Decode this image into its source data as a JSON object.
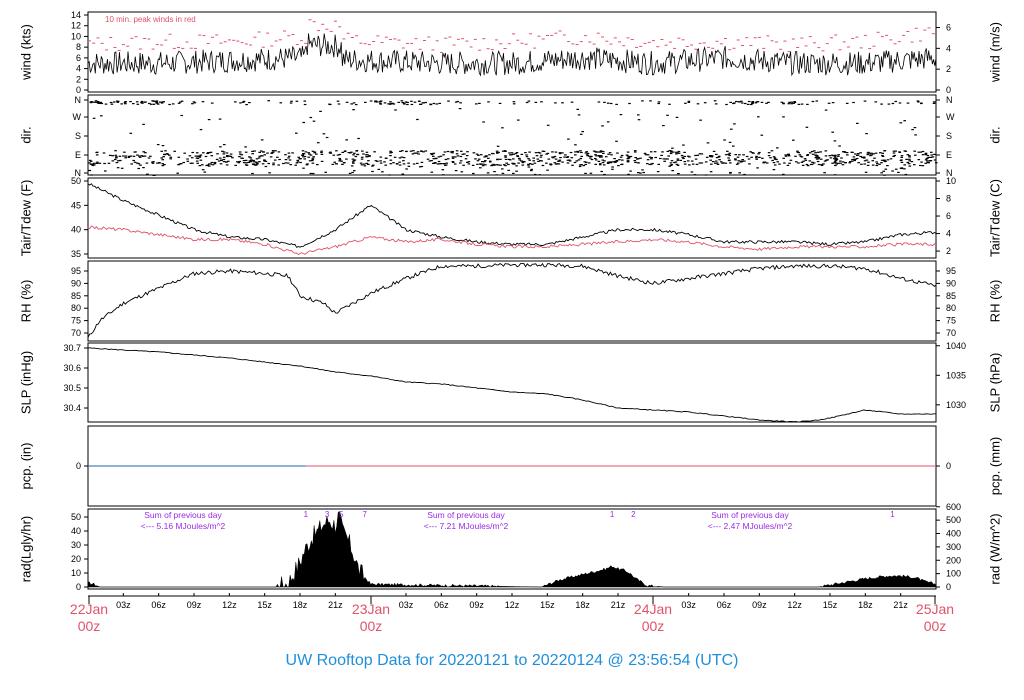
{
  "title": "UW Rooftop Data for 20220121  to  20220124 @ 23:56:54  (UTC)",
  "colors": {
    "title": "#1f8fdb",
    "red": "#df536b",
    "black": "#000000",
    "purple": "#9a2be2",
    "blue": "#2166ac"
  },
  "x_axis": {
    "hour_labels": [
      "03z",
      "06z",
      "09z",
      "12z",
      "15z",
      "18z",
      "21z"
    ],
    "days": [
      {
        "date": "22Jan",
        "hour": "00z"
      },
      {
        "date": "23Jan",
        "hour": "00z"
      },
      {
        "date": "24Jan",
        "hour": "00z"
      },
      {
        "date": "25Jan",
        "hour": "00z"
      }
    ]
  },
  "chart_data": [
    {
      "type": "line",
      "panel": "wind",
      "left_label": "wind (kts)",
      "right_label": "wind (m/s)",
      "note": "10 min. peak winds in red",
      "left_ticks": [
        "0",
        "2",
        "4",
        "6",
        "8",
        "10",
        "12",
        "14"
      ],
      "right_ticks": [
        "0",
        "2",
        "4",
        "6"
      ],
      "ylim": [
        0,
        14
      ],
      "x_hours": [
        0,
        6,
        12,
        18,
        24,
        30,
        36,
        42,
        48,
        54,
        60,
        66,
        72
      ],
      "series": [
        {
          "values": [
            5,
            5,
            5.5,
            6,
            5.5,
            5,
            5,
            6,
            5,
            6,
            5,
            5,
            6
          ]
        },
        {
          "values": [
            8.5,
            9,
            9,
            10,
            9,
            8.5,
            9,
            10,
            9,
            9,
            8.5,
            9,
            11
          ],
          "color": "red"
        }
      ]
    },
    {
      "type": "scatter",
      "panel": "dir",
      "left_label": "dir.",
      "right_label": "dir.",
      "left_ticks": [
        "N",
        "W",
        "S",
        "E",
        "N"
      ],
      "right_ticks": [
        "N",
        "W",
        "S",
        "E",
        "N"
      ]
    },
    {
      "type": "line",
      "panel": "temp",
      "left_label": "Tair/Tdew (F)",
      "right_label": "Tair/Tdew (C)",
      "left_ticks": [
        "35",
        "40",
        "45",
        "50"
      ],
      "right_ticks": [
        "2",
        "4",
        "6",
        "8",
        "10"
      ],
      "ylim": [
        33.5,
        50
      ],
      "x_hours": [
        0,
        3,
        6,
        9,
        12,
        15,
        18,
        21,
        24,
        27,
        30,
        33,
        36,
        39,
        42,
        45,
        48,
        51,
        54,
        57,
        60,
        63,
        66,
        69,
        72
      ],
      "series": [
        {
          "name": "Tair",
          "values": [
            49.5,
            46,
            43,
            40,
            38.5,
            38,
            36.5,
            40,
            45,
            40,
            38.5,
            37.5,
            37,
            37,
            38.5,
            40,
            40,
            39,
            37.5,
            37.5,
            37.5,
            37,
            37.5,
            39,
            39.5
          ]
        },
        {
          "name": "Tdew",
          "values": [
            40.5,
            40,
            39,
            38,
            38,
            37,
            35,
            36.5,
            38.5,
            37.5,
            38,
            37,
            36.5,
            36.5,
            37,
            37.5,
            38,
            37.5,
            36.5,
            36,
            36.5,
            36.5,
            36.5,
            37,
            37
          ],
          "color": "red"
        }
      ]
    },
    {
      "type": "line",
      "panel": "rh",
      "left_label": "RH (%)",
      "right_label": "RH (%)",
      "left_ticks": [
        "70",
        "75",
        "80",
        "85",
        "90",
        "95"
      ],
      "right_ticks": [
        "70",
        "75",
        "80",
        "85",
        "90",
        "95"
      ],
      "ylim": [
        67,
        98
      ],
      "x_hours": [
        0,
        1,
        3,
        6,
        9,
        12,
        15,
        17,
        18,
        20,
        21,
        24,
        27,
        30,
        33,
        36,
        39,
        42,
        45,
        48,
        51,
        54,
        57,
        60,
        63,
        66,
        69,
        72
      ],
      "series": [
        {
          "name": "RH",
          "values": [
            68,
            75,
            82,
            88,
            94,
            95,
            94,
            93,
            85,
            82,
            78,
            86,
            92,
            97,
            97,
            97.5,
            97.5,
            97,
            93,
            90,
            92,
            94,
            96,
            97,
            97,
            96,
            92,
            89
          ]
        }
      ]
    },
    {
      "type": "line",
      "panel": "slp",
      "left_label": "SLP (inHg)",
      "right_label": "SLP (hPa)",
      "left_ticks": [
        "30.4",
        "30.5",
        "30.6",
        "30.7"
      ],
      "right_ticks": [
        "1030",
        "1035",
        "1040"
      ],
      "ylim": [
        30.33,
        30.71
      ],
      "x_hours": [
        0,
        3,
        6,
        9,
        12,
        15,
        18,
        21,
        24,
        27,
        30,
        33,
        36,
        39,
        42,
        45,
        48,
        51,
        54,
        57,
        60,
        62,
        63,
        66,
        69,
        72
      ],
      "series": [
        {
          "name": "SLP",
          "values": [
            30.7,
            30.69,
            30.68,
            30.665,
            30.65,
            30.63,
            30.61,
            30.58,
            30.56,
            30.53,
            30.52,
            30.5,
            30.48,
            30.47,
            30.44,
            30.4,
            30.39,
            30.38,
            30.36,
            30.34,
            30.33,
            30.34,
            30.35,
            30.39,
            30.37,
            30.37
          ]
        }
      ]
    },
    {
      "type": "line",
      "panel": "pcp",
      "left_label": "pcp. (in)",
      "right_label": "pcp. (mm)",
      "left_ticks": [
        "0"
      ],
      "right_ticks": [
        "0"
      ],
      "x_hours": [
        0,
        72
      ],
      "series": [
        {
          "values": [
            0,
            0
          ]
        }
      ]
    },
    {
      "type": "area",
      "panel": "rad",
      "left_label": "rad(Lgly/hr)",
      "right_label": "rad (W/m^2)",
      "left_ticks": [
        "0",
        "10",
        "20",
        "30",
        "40",
        "50"
      ],
      "right_ticks": [
        "0",
        "100",
        "200",
        "300",
        "400",
        "500",
        "600"
      ],
      "ylim": [
        0,
        55
      ],
      "annotations": [
        {
          "line1": "Sum of previous day",
          "line2": "<--- 5.16 MJoules/m^2"
        },
        {
          "line1": "Sum of previous day",
          "line2": "<--- 7.21 MJoules/m^2"
        },
        {
          "line1": "Sum of previous day",
          "line2": "<--- 2.47 MJoules/m^2"
        }
      ],
      "hour_marks": [
        {
          "x": 18.5,
          "label": "1"
        },
        {
          "x": 20.3,
          "label": "3"
        },
        {
          "x": 21.5,
          "label": "5"
        },
        {
          "x": 23.5,
          "label": "7"
        },
        {
          "x": 44.5,
          "label": "1"
        },
        {
          "x": 46.3,
          "label": "2"
        },
        {
          "x": 68.3,
          "label": "1"
        }
      ],
      "x_hours": [
        0,
        0.5,
        1,
        15,
        16,
        17,
        18,
        18.5,
        19,
        19.5,
        20,
        20.5,
        21,
        21.3,
        21.6,
        22,
        22.5,
        23,
        24,
        38.5,
        40,
        42,
        43,
        44,
        44.5,
        45,
        45.5,
        46,
        46.5,
        47.5,
        49,
        62,
        64,
        66,
        67,
        68,
        69,
        70,
        70.5,
        71,
        72
      ],
      "series": [
        {
          "name": "Solar radiation",
          "values": [
            3,
            2,
            0,
            0,
            0,
            3,
            18,
            28,
            35,
            40,
            45,
            48,
            44,
            52,
            40,
            35,
            25,
            12,
            2,
            0,
            5,
            9,
            11,
            13,
            15,
            13,
            12,
            10,
            6,
            1,
            0,
            0,
            3,
            6,
            7,
            8,
            8,
            7,
            6,
            4,
            2
          ]
        }
      ]
    }
  ]
}
